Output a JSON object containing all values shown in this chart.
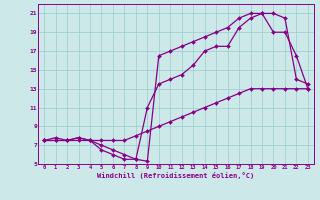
{
  "xlabel": "Windchill (Refroidissement éolien,°C)",
  "xlim": [
    -0.5,
    23.5
  ],
  "ylim": [
    5,
    22
  ],
  "xticks": [
    0,
    1,
    2,
    3,
    4,
    5,
    6,
    7,
    8,
    9,
    10,
    11,
    12,
    13,
    14,
    15,
    16,
    17,
    18,
    19,
    20,
    21,
    22,
    23
  ],
  "yticks": [
    5,
    7,
    9,
    11,
    13,
    15,
    17,
    19,
    21
  ],
  "bg_color": "#cce8e8",
  "line_color": "#880088",
  "grid_color": "#99cccc",
  "curves": [
    {
      "x": [
        0,
        1,
        2,
        3,
        4,
        5,
        6,
        7,
        8,
        9,
        10,
        11,
        12,
        13,
        14,
        15,
        16,
        17,
        18,
        19,
        20,
        21,
        22,
        23
      ],
      "y": [
        7.5,
        7.5,
        7.5,
        7.8,
        7.5,
        7.5,
        7.5,
        7.5,
        8.0,
        8.5,
        9.0,
        9.5,
        10.0,
        10.5,
        11.0,
        11.5,
        12.0,
        12.5,
        13.0,
        13.0,
        13.0,
        13.0,
        13.0,
        13.0
      ]
    },
    {
      "x": [
        0,
        1,
        2,
        3,
        4,
        5,
        6,
        7,
        8,
        9,
        10,
        11,
        12,
        13,
        14,
        15,
        16,
        17,
        18,
        19,
        20,
        21,
        22,
        23
      ],
      "y": [
        7.5,
        7.8,
        7.5,
        7.5,
        7.5,
        6.5,
        6.0,
        5.5,
        5.5,
        11.0,
        13.5,
        14.0,
        14.5,
        15.5,
        17.0,
        17.5,
        17.5,
        19.5,
        20.5,
        21.0,
        19.0,
        19.0,
        16.5,
        13.0
      ]
    },
    {
      "x": [
        0,
        1,
        2,
        3,
        4,
        5,
        6,
        7,
        8,
        9,
        10,
        11,
        12,
        13,
        14,
        15,
        16,
        17,
        18,
        19,
        20,
        21,
        22,
        23
      ],
      "y": [
        7.5,
        7.5,
        7.5,
        7.8,
        7.5,
        7.0,
        6.5,
        6.0,
        5.5,
        5.3,
        16.5,
        17.0,
        17.5,
        18.0,
        18.5,
        19.0,
        19.5,
        20.5,
        21.0,
        21.0,
        21.0,
        20.5,
        14.0,
        13.5
      ]
    }
  ]
}
